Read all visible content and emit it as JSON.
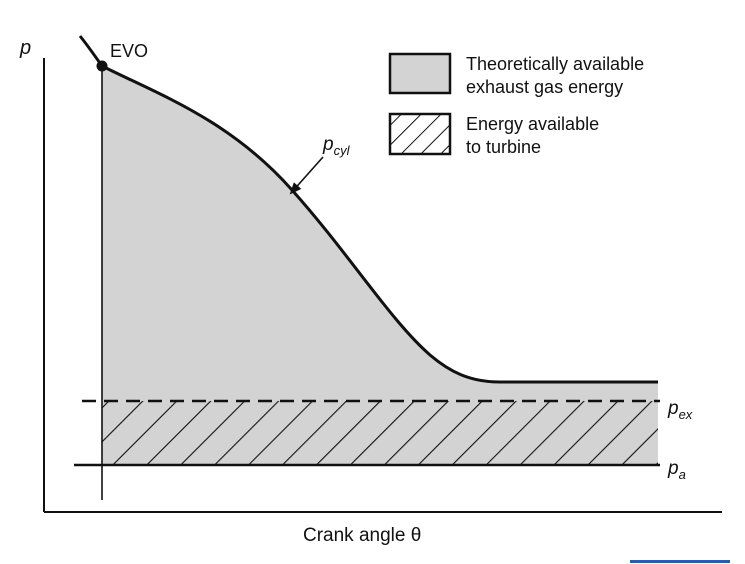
{
  "diagram": {
    "axis_y_label": "p",
    "axis_x_label": "Crank angle θ",
    "evo_label": "EVO",
    "pcyl_label": {
      "main": "p",
      "sub": "cyl"
    },
    "pex_label": {
      "main": "p",
      "sub": "ex"
    },
    "pa_label": {
      "main": "p",
      "sub": "a"
    },
    "legend": [
      {
        "line1": "Theoretically available",
        "line2": "exhaust gas energy",
        "swatch": "shaded"
      },
      {
        "line1": "Energy available",
        "line2": "to turbine",
        "swatch": "hatched"
      }
    ],
    "colors": {
      "shade": "#d3d3d3",
      "ink": "#111111",
      "accent_bar": "#1f5fbf"
    }
  }
}
